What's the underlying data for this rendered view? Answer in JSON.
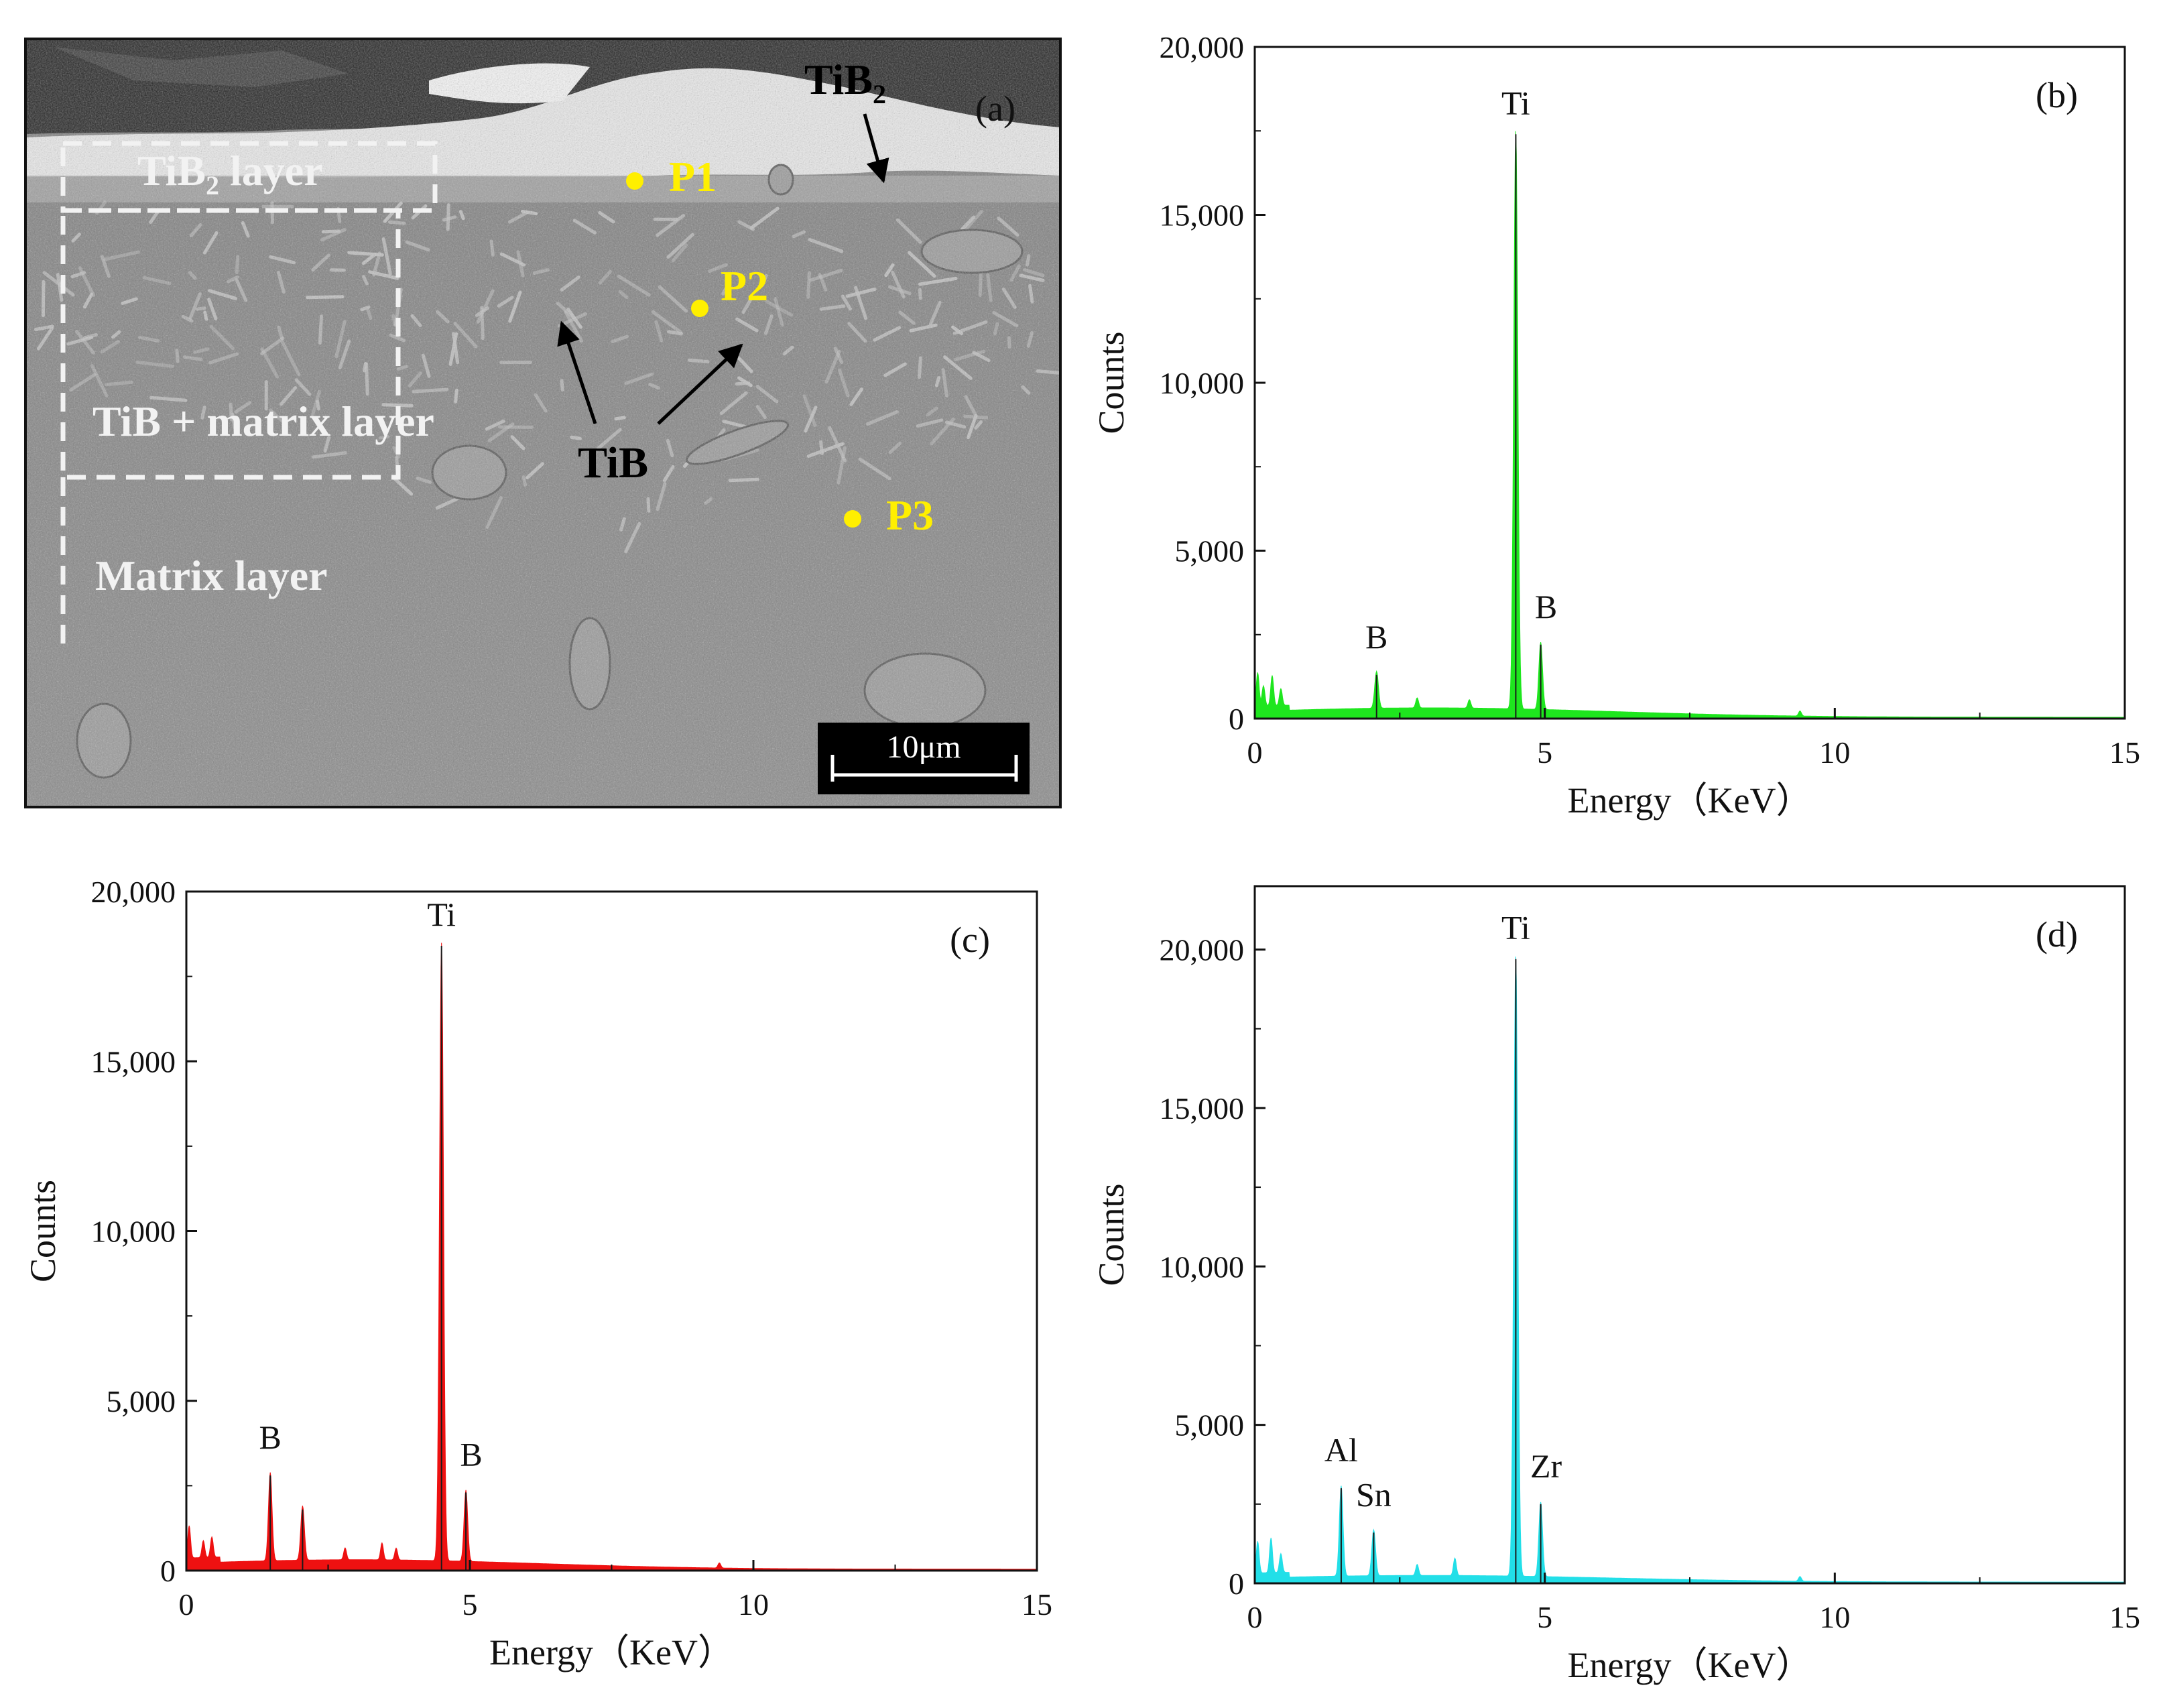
{
  "sem_panel": {
    "panel_label": "(a)",
    "labels": {
      "tib2_top": "TiB",
      "tib2_top_sub": "2",
      "tib2_layer_pre": "TiB",
      "tib2_layer_sub": "2",
      "tib2_layer_post": " layer",
      "tib_matrix_layer": "TiB + matrix layer",
      "matrix_layer": "Matrix layer",
      "tib": "TiB",
      "p1": "P1",
      "p2": "P2",
      "p3": "P3",
      "scale_bar": "10μm"
    },
    "colors": {
      "point_marker": "#ffef00",
      "background": "#8a8a8a",
      "dark_top": "#2a2a2a"
    }
  },
  "chart_data": [
    {
      "type": "line",
      "panel_label": "(b)",
      "xlabel": "Energy（KeV）",
      "ylabel": "Counts",
      "xlim": [
        0,
        15
      ],
      "ylim": [
        0,
        20000
      ],
      "x_ticks": [
        0,
        5,
        10,
        15
      ],
      "y_ticks": [
        0,
        5000,
        10000,
        15000,
        20000
      ],
      "y_tick_labels": [
        "0",
        "5,000",
        "10,000",
        "15,000",
        "20,000"
      ],
      "color": "#1ee61e",
      "baseline": 200,
      "noise": [
        [
          0.05,
          1000
        ],
        [
          0.15,
          600
        ],
        [
          0.3,
          900
        ],
        [
          0.45,
          500
        ],
        [
          2.8,
          300
        ],
        [
          3.7,
          250
        ],
        [
          9.4,
          150
        ]
      ],
      "peaks": [
        {
          "x": 2.1,
          "y": 1300,
          "label": "B"
        },
        {
          "x": 4.5,
          "y": 17400,
          "label": "Ti"
        },
        {
          "x": 4.93,
          "y": 2200,
          "label": "B"
        }
      ]
    },
    {
      "type": "line",
      "panel_label": "(c)",
      "xlabel": "Energy（KeV）",
      "ylabel": "Counts",
      "xlim": [
        0,
        15
      ],
      "ylim": [
        0,
        20000
      ],
      "x_ticks": [
        0,
        5,
        10,
        15
      ],
      "y_ticks": [
        0,
        5000,
        10000,
        15000,
        20000
      ],
      "y_tick_labels": [
        "0",
        "5,000",
        "10,000",
        "15,000",
        "20,000"
      ],
      "color": "#ee1111",
      "baseline": 200,
      "noise": [
        [
          0.05,
          950
        ],
        [
          0.3,
          500
        ],
        [
          0.45,
          600
        ],
        [
          2.8,
          350
        ],
        [
          3.45,
          500
        ],
        [
          3.7,
          350
        ],
        [
          9.4,
          150
        ]
      ],
      "peaks": [
        {
          "x": 1.48,
          "y": 2800,
          "label": "B"
        },
        {
          "x": 2.05,
          "y": 1800,
          "label": ""
        },
        {
          "x": 4.5,
          "y": 18400,
          "label": "Ti"
        },
        {
          "x": 4.93,
          "y": 2300,
          "label": "B"
        }
      ]
    },
    {
      "type": "line",
      "panel_label": "(d)",
      "xlabel": "Energy（KeV）",
      "ylabel": "Counts",
      "xlim": [
        0,
        15
      ],
      "ylim": [
        0,
        22000
      ],
      "x_ticks": [
        0,
        5,
        10,
        15
      ],
      "y_ticks": [
        0,
        5000,
        10000,
        15000,
        20000
      ],
      "y_tick_labels": [
        "0",
        "5,000",
        "10,000",
        "15,000",
        "20,000"
      ],
      "color": "#22dfe8",
      "baseline": 150,
      "noise": [
        [
          0.05,
          1000
        ],
        [
          0.28,
          1100
        ],
        [
          0.45,
          600
        ],
        [
          2.8,
          350
        ],
        [
          3.45,
          550
        ],
        [
          9.4,
          150
        ]
      ],
      "peaks": [
        {
          "x": 1.49,
          "y": 3000,
          "label": "Al"
        },
        {
          "x": 2.05,
          "y": 1600,
          "label": "Sn"
        },
        {
          "x": 4.5,
          "y": 19700,
          "label": "Ti"
        },
        {
          "x": 4.93,
          "y": 2500,
          "label": "Zr"
        }
      ]
    }
  ]
}
